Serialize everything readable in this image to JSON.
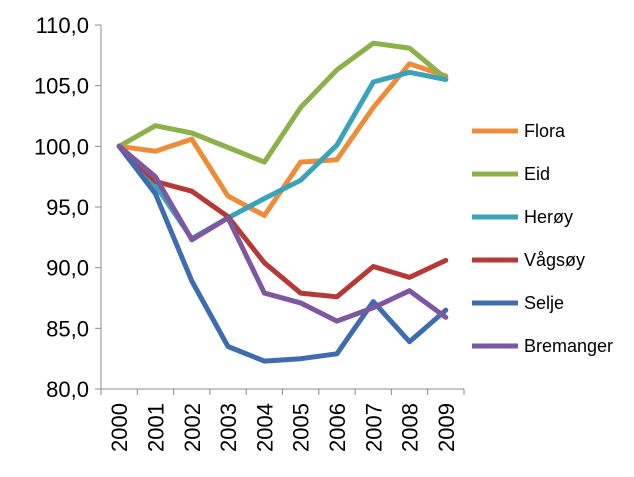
{
  "chart_data": {
    "type": "line",
    "x": [
      "2000",
      "2001",
      "2002",
      "2003",
      "2004",
      "2005",
      "2006",
      "2007",
      "2008",
      "2009"
    ],
    "y_ticks": [
      "80,0",
      "85,0",
      "90,0",
      "95,0",
      "100,0",
      "105,0",
      "110,0"
    ],
    "ylim": [
      80,
      110
    ],
    "y_step": 5,
    "grid": false,
    "legend_position": "right",
    "series": [
      {
        "name": "Flora",
        "color": "#EE8C3A",
        "values": [
          100.0,
          99.6,
          100.6,
          95.9,
          94.3,
          98.7,
          98.9,
          103.2,
          106.8,
          105.8
        ]
      },
      {
        "name": "Eid",
        "color": "#8CB04A",
        "values": [
          100.0,
          101.7,
          101.1,
          99.9,
          98.7,
          103.2,
          106.3,
          108.5,
          108.1,
          105.6
        ]
      },
      {
        "name": "Herøy",
        "color": "#3BA3B9",
        "values": [
          100.0,
          96.8,
          92.4,
          94.1,
          95.7,
          97.2,
          100.1,
          105.3,
          106.1,
          105.5
        ]
      },
      {
        "name": "Vågsøy",
        "color": "#B53A37",
        "values": [
          100.0,
          97.1,
          96.3,
          94.2,
          90.4,
          87.9,
          87.6,
          90.1,
          89.2,
          90.6
        ]
      },
      {
        "name": "Selje",
        "color": "#3F6CAE",
        "values": [
          100.0,
          96.1,
          88.9,
          83.5,
          82.3,
          82.5,
          82.9,
          87.2,
          83.9,
          86.5
        ]
      },
      {
        "name": "Bremanger",
        "color": "#7D57A0",
        "values": [
          100.0,
          97.5,
          92.3,
          94.1,
          87.9,
          87.1,
          85.6,
          86.7,
          88.1,
          85.9
        ]
      }
    ]
  }
}
